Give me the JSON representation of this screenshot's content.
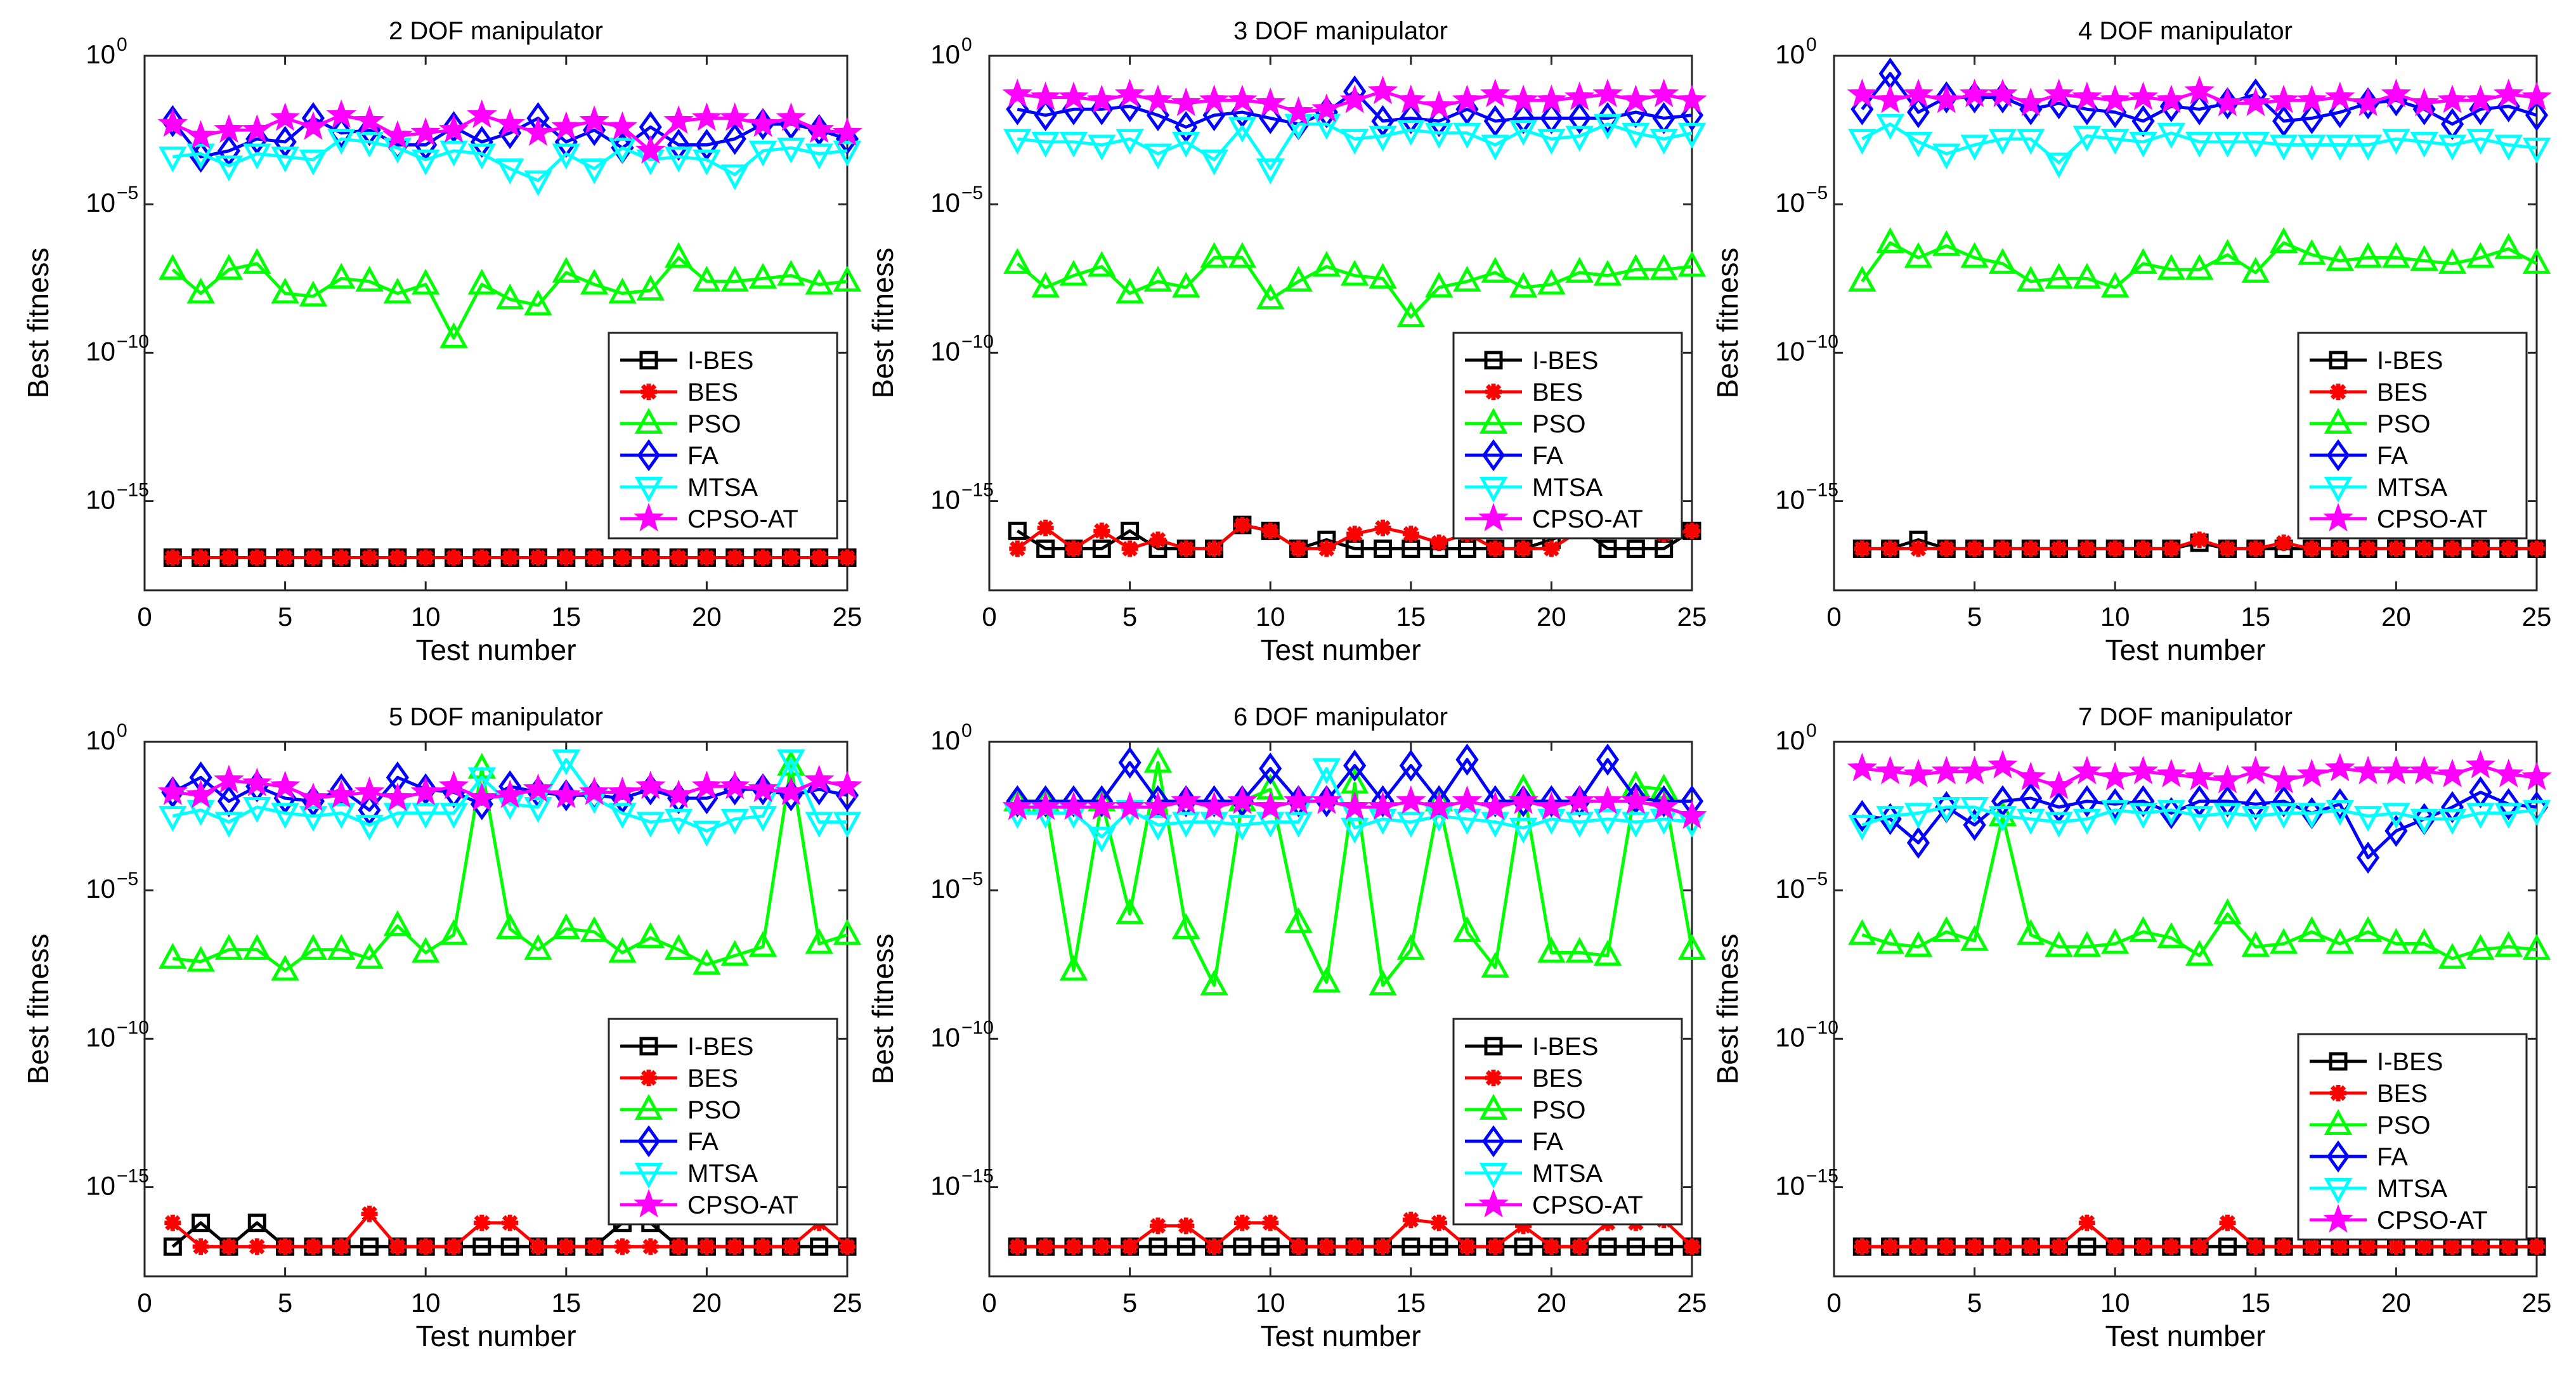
{
  "chart_data": {
    "type": "line",
    "x": [
      1,
      2,
      3,
      4,
      5,
      6,
      7,
      8,
      9,
      10,
      11,
      12,
      13,
      14,
      15,
      16,
      17,
      18,
      19,
      20,
      21,
      22,
      23,
      24,
      25
    ],
    "xlabel": "Test number",
    "ylabel": "Best fitness",
    "xlim": [
      0,
      25
    ],
    "ylim": [
      1e-18,
      1
    ],
    "xticks": [
      0,
      5,
      10,
      15,
      20,
      25
    ],
    "xtick_labels": [
      "0",
      "5",
      "10",
      "15",
      "20",
      "25"
    ],
    "ytick_exponents": [
      0,
      -5,
      -10,
      -15
    ],
    "ytick_base": "10",
    "ytick_labels": [
      "10^0",
      "10^-5",
      "10^-10",
      "10^-15"
    ],
    "y_scale": "log",
    "legend_entries": [
      "I-BES",
      "BES",
      "PSO",
      "FA",
      "MTSA",
      "CPSO-AT"
    ],
    "series_styles": [
      {
        "name": "I-BES",
        "color": "#000000",
        "marker": "square"
      },
      {
        "name": "BES",
        "color": "#ff0000",
        "marker": "asterisk"
      },
      {
        "name": "PSO",
        "color": "#00ff00",
        "marker": "triangle-up"
      },
      {
        "name": "FA",
        "color": "#0000ff",
        "marker": "diamond"
      },
      {
        "name": "MTSA",
        "color": "#00ffff",
        "marker": "triangle-down"
      },
      {
        "name": "CPSO-AT",
        "color": "#ff00ff",
        "marker": "star"
      }
    ],
    "panels": [
      {
        "title": "2 DOF manipulator",
        "legend_position": "bottom-right",
        "series": {
          "I-BES": [
            -16.9,
            -16.9,
            -16.9,
            -16.9,
            -16.9,
            -16.9,
            -16.9,
            -16.9,
            -16.9,
            -16.9,
            -16.9,
            -16.9,
            -16.9,
            -16.9,
            -16.9,
            -16.9,
            -16.9,
            -16.9,
            -16.9,
            -16.9,
            -16.9,
            -16.9,
            -16.9,
            -16.9,
            -16.9
          ],
          "BES": [
            -16.9,
            -16.9,
            -16.9,
            -16.9,
            -16.9,
            -16.9,
            -16.9,
            -16.9,
            -16.9,
            -16.9,
            -16.9,
            -16.9,
            -16.9,
            -16.9,
            -16.9,
            -16.9,
            -16.9,
            -16.9,
            -16.9,
            -16.9,
            -16.9,
            -16.9,
            -16.9,
            -16.9,
            -16.9
          ],
          "PSO": [
            -7.2,
            -8.0,
            -7.2,
            -7.0,
            -8.0,
            -8.1,
            -7.5,
            -7.6,
            -8.0,
            -7.7,
            -9.5,
            -7.7,
            -8.2,
            -8.4,
            -7.3,
            -7.7,
            -8.0,
            -7.9,
            -6.8,
            -7.6,
            -7.6,
            -7.5,
            -7.4,
            -7.7,
            -7.6
          ],
          "FA": [
            -2.2,
            -3.4,
            -3.2,
            -2.8,
            -2.9,
            -2.1,
            -2.6,
            -2.5,
            -3.0,
            -3.0,
            -2.4,
            -2.9,
            -2.6,
            -2.1,
            -2.9,
            -2.5,
            -3.1,
            -2.4,
            -3.0,
            -3.0,
            -2.8,
            -2.3,
            -2.3,
            -2.5,
            -2.8
          ],
          "MTSA": [
            -3.4,
            -3.3,
            -3.7,
            -3.3,
            -3.4,
            -3.5,
            -2.8,
            -2.9,
            -3.1,
            -3.5,
            -3.2,
            -3.3,
            -3.8,
            -4.2,
            -3.3,
            -3.8,
            -3.1,
            -3.5,
            -3.4,
            -3.5,
            -4.0,
            -3.2,
            -3.1,
            -3.3,
            -3.2
          ],
          "CPSO-AT": [
            -2.3,
            -2.7,
            -2.5,
            -2.5,
            -2.1,
            -2.4,
            -2.0,
            -2.2,
            -2.7,
            -2.6,
            -2.5,
            -2.0,
            -2.3,
            -2.6,
            -2.4,
            -2.2,
            -2.4,
            -3.2,
            -2.2,
            -2.1,
            -2.1,
            -2.3,
            -2.1,
            -2.5,
            -2.6
          ]
        }
      },
      {
        "title": "3 DOF manipulator",
        "legend_position": "bottom-right",
        "series": {
          "I-BES": [
            -16.0,
            -16.6,
            -16.6,
            -16.6,
            -16.0,
            -16.6,
            -16.6,
            -16.6,
            -15.8,
            -16.0,
            -16.6,
            -16.3,
            -16.6,
            -16.6,
            -16.6,
            -16.6,
            -16.6,
            -16.6,
            -16.6,
            -16.3,
            -15.9,
            -16.6,
            -16.6,
            -16.6,
            -16.0
          ],
          "BES": [
            -16.6,
            -15.9,
            -16.6,
            -16.0,
            -16.6,
            -16.3,
            -16.6,
            -16.6,
            -15.8,
            -16.0,
            -16.6,
            -16.6,
            -16.1,
            -15.9,
            -16.1,
            -16.4,
            -16.1,
            -16.6,
            -16.6,
            -16.6,
            -16.0,
            -16.0,
            -15.7,
            -16.1,
            -16.0
          ],
          "PSO": [
            -7.0,
            -7.8,
            -7.4,
            -7.1,
            -8.0,
            -7.6,
            -7.8,
            -6.8,
            -6.8,
            -8.2,
            -7.6,
            -7.1,
            -7.4,
            -7.5,
            -8.8,
            -7.8,
            -7.6,
            -7.3,
            -7.8,
            -7.7,
            -7.3,
            -7.4,
            -7.2,
            -7.2,
            -7.1
          ],
          "FA": [
            -1.8,
            -2.0,
            -1.8,
            -1.8,
            -1.7,
            -2.0,
            -2.4,
            -2.0,
            -1.9,
            -2.1,
            -2.3,
            -1.9,
            -1.2,
            -2.2,
            -2.1,
            -2.2,
            -1.8,
            -2.2,
            -2.1,
            -2.1,
            -2.1,
            -2.1,
            -1.9,
            -2.1,
            -2.0
          ],
          "MTSA": [
            -2.8,
            -2.9,
            -2.9,
            -3.0,
            -2.8,
            -3.3,
            -2.9,
            -3.5,
            -2.4,
            -3.8,
            -2.3,
            -2.3,
            -2.8,
            -2.7,
            -2.5,
            -2.6,
            -2.6,
            -3.0,
            -2.5,
            -2.8,
            -2.7,
            -2.3,
            -2.6,
            -2.8,
            -2.6
          ],
          "CPSO-AT": [
            -1.3,
            -1.4,
            -1.4,
            -1.5,
            -1.3,
            -1.5,
            -1.6,
            -1.5,
            -1.5,
            -1.6,
            -1.9,
            -1.8,
            -1.5,
            -1.2,
            -1.5,
            -1.7,
            -1.5,
            -1.3,
            -1.5,
            -1.5,
            -1.4,
            -1.3,
            -1.5,
            -1.3,
            -1.5
          ]
        }
      },
      {
        "title": "4 DOF manipulator",
        "legend_position": "bottom-right",
        "series": {
          "I-BES": [
            -16.6,
            -16.6,
            -16.3,
            -16.6,
            -16.6,
            -16.6,
            -16.6,
            -16.6,
            -16.6,
            -16.6,
            -16.6,
            -16.6,
            -16.4,
            -16.6,
            -16.6,
            -16.6,
            -16.6,
            -16.6,
            -16.6,
            -16.6,
            -16.6,
            -16.6,
            -16.6,
            -16.6,
            -16.6
          ],
          "BES": [
            -16.6,
            -16.6,
            -16.6,
            -16.6,
            -16.6,
            -16.6,
            -16.6,
            -16.6,
            -16.6,
            -16.6,
            -16.6,
            -16.6,
            -16.3,
            -16.6,
            -16.6,
            -16.4,
            -16.6,
            -16.6,
            -16.6,
            -16.6,
            -16.6,
            -16.6,
            -16.6,
            -16.6,
            -16.6
          ],
          "PSO": [
            -7.6,
            -6.3,
            -6.8,
            -6.4,
            -6.8,
            -7.0,
            -7.6,
            -7.5,
            -7.5,
            -7.8,
            -7.0,
            -7.2,
            -7.2,
            -6.7,
            -7.3,
            -6.3,
            -6.7,
            -6.9,
            -6.8,
            -6.8,
            -6.9,
            -7.0,
            -6.8,
            -6.5,
            -7.0
          ],
          "FA": [
            -1.8,
            -0.6,
            -1.9,
            -1.4,
            -1.4,
            -1.4,
            -1.8,
            -1.6,
            -1.8,
            -1.9,
            -2.2,
            -1.7,
            -1.8,
            -1.6,
            -1.3,
            -2.2,
            -2.1,
            -1.9,
            -1.6,
            -1.5,
            -1.8,
            -2.3,
            -1.8,
            -1.7,
            -2.0
          ],
          "MTSA": [
            -2.8,
            -2.3,
            -2.9,
            -3.3,
            -3.0,
            -2.8,
            -2.8,
            -3.6,
            -2.7,
            -2.8,
            -2.9,
            -2.6,
            -2.9,
            -2.9,
            -2.9,
            -3.0,
            -3.0,
            -3.0,
            -3.0,
            -2.8,
            -2.9,
            -3.0,
            -2.8,
            -3.0,
            -3.1
          ],
          "CPSO-AT": [
            -1.3,
            -1.5,
            -1.3,
            -1.5,
            -1.3,
            -1.3,
            -1.6,
            -1.3,
            -1.4,
            -1.5,
            -1.4,
            -1.5,
            -1.2,
            -1.6,
            -1.6,
            -1.5,
            -1.5,
            -1.4,
            -1.6,
            -1.3,
            -1.6,
            -1.5,
            -1.5,
            -1.3,
            -1.4
          ]
        }
      },
      {
        "title": "5 DOF manipulator",
        "legend_position": "bottom-right",
        "series": {
          "I-BES": [
            -17.0,
            -16.2,
            -17.0,
            -16.2,
            -17.0,
            -17.0,
            -17.0,
            -17.0,
            -17.0,
            -17.0,
            -17.0,
            -17.0,
            -17.0,
            -17.0,
            -17.0,
            -17.0,
            -16.2,
            -16.2,
            -17.0,
            -17.0,
            -17.0,
            -17.0,
            -17.0,
            -17.0,
            -17.0
          ],
          "BES": [
            -16.2,
            -17.0,
            -17.0,
            -17.0,
            -17.0,
            -17.0,
            -17.0,
            -15.9,
            -17.0,
            -17.0,
            -17.0,
            -16.2,
            -16.2,
            -17.0,
            -17.0,
            -17.0,
            -17.0,
            -17.0,
            -17.0,
            -17.0,
            -17.0,
            -17.0,
            -17.0,
            -16.2,
            -17.0
          ],
          "PSO": [
            -7.3,
            -7.4,
            -7.0,
            -7.0,
            -7.7,
            -7.0,
            -7.0,
            -7.3,
            -6.2,
            -7.1,
            -6.5,
            -0.9,
            -6.3,
            -7.0,
            -6.3,
            -6.4,
            -7.1,
            -6.6,
            -7.0,
            -7.5,
            -7.2,
            -6.9,
            -0.8,
            -6.8,
            -6.5
          ],
          "FA": [
            -1.7,
            -1.2,
            -2.0,
            -1.5,
            -1.9,
            -2.0,
            -1.6,
            -2.3,
            -1.2,
            -1.6,
            -1.7,
            -2.1,
            -1.5,
            -1.7,
            -1.8,
            -1.8,
            -1.9,
            -1.6,
            -1.9,
            -1.9,
            -1.6,
            -1.6,
            -1.8,
            -1.6,
            -1.8
          ],
          "MTSA": [
            -2.5,
            -2.3,
            -2.7,
            -2.2,
            -2.4,
            -2.5,
            -2.4,
            -2.8,
            -2.4,
            -2.4,
            -2.4,
            -1.2,
            -2.1,
            -2.2,
            -0.6,
            -1.9,
            -2.4,
            -2.7,
            -2.6,
            -3.0,
            -2.6,
            -2.5,
            -0.6,
            -2.7,
            -2.7
          ],
          "CPSO-AT": [
            -1.7,
            -1.8,
            -1.3,
            -1.4,
            -1.5,
            -1.9,
            -1.8,
            -1.7,
            -1.9,
            -1.7,
            -1.5,
            -1.9,
            -1.8,
            -1.6,
            -1.8,
            -1.7,
            -1.7,
            -1.5,
            -1.8,
            -1.5,
            -1.5,
            -1.6,
            -1.7,
            -1.3,
            -1.5
          ]
        }
      },
      {
        "title": "6 DOF manipulator",
        "legend_position": "bottom-right",
        "series": {
          "I-BES": [
            -17.0,
            -17.0,
            -17.0,
            -17.0,
            -17.0,
            -17.0,
            -17.0,
            -17.0,
            -17.0,
            -17.0,
            -17.0,
            -17.0,
            -17.0,
            -17.0,
            -17.0,
            -17.0,
            -17.0,
            -17.0,
            -17.0,
            -17.0,
            -17.0,
            -17.0,
            -17.0,
            -17.0,
            -17.0
          ],
          "BES": [
            -17.0,
            -17.0,
            -17.0,
            -17.0,
            -17.0,
            -16.3,
            -16.3,
            -17.0,
            -16.2,
            -16.2,
            -17.0,
            -17.0,
            -17.0,
            -17.0,
            -16.1,
            -16.2,
            -17.0,
            -17.0,
            -16.3,
            -17.0,
            -17.0,
            -16.2,
            -16.2,
            -16.1,
            -17.0
          ],
          "PSO": [
            -2.0,
            -2.0,
            -7.7,
            -2.0,
            -5.8,
            -0.7,
            -6.3,
            -8.2,
            -2.0,
            -1.6,
            -6.1,
            -8.1,
            -1.4,
            -8.2,
            -7.0,
            -2.0,
            -6.4,
            -7.6,
            -1.6,
            -7.1,
            -7.1,
            -7.2,
            -1.5,
            -1.6,
            -7.0
          ],
          "FA": [
            -2.0,
            -2.0,
            -2.0,
            -2.0,
            -0.7,
            -2.0,
            -2.0,
            -2.0,
            -2.0,
            -0.9,
            -2.0,
            -2.0,
            -0.8,
            -2.0,
            -0.8,
            -2.0,
            -0.6,
            -2.0,
            -2.0,
            -2.0,
            -2.0,
            -0.6,
            -1.9,
            -2.0,
            -2.0
          ],
          "MTSA": [
            -2.4,
            -2.4,
            -2.4,
            -3.2,
            -2.3,
            -2.8,
            -2.7,
            -2.7,
            -2.8,
            -2.7,
            -2.7,
            -0.9,
            -2.9,
            -2.6,
            -2.7,
            -2.5,
            -2.6,
            -2.7,
            -2.9,
            -2.6,
            -2.7,
            -2.6,
            -2.7,
            -2.6,
            -2.7
          ],
          "CPSO-AT": [
            -2.2,
            -2.2,
            -2.2,
            -2.2,
            -2.2,
            -2.2,
            -2.0,
            -2.2,
            -2.0,
            -2.2,
            -2.0,
            -2.0,
            -2.2,
            -2.2,
            -2.0,
            -2.2,
            -2.0,
            -2.2,
            -2.0,
            -2.2,
            -2.0,
            -2.0,
            -2.0,
            -2.2,
            -2.5
          ]
        }
      },
      {
        "title": "7 DOF manipulator",
        "legend_position": "bottom-right",
        "series": {
          "I-BES": [
            -17.0,
            -17.0,
            -17.0,
            -17.0,
            -17.0,
            -17.0,
            -17.0,
            -17.0,
            -17.0,
            -17.0,
            -17.0,
            -17.0,
            -17.0,
            -17.0,
            -17.0,
            -17.0,
            -17.0,
            -17.0,
            -17.0,
            -17.0,
            -17.0,
            -17.0,
            -17.0,
            -17.0,
            -17.0
          ],
          "BES": [
            -17.0,
            -17.0,
            -17.0,
            -17.0,
            -17.0,
            -17.0,
            -17.0,
            -17.0,
            -16.2,
            -17.0,
            -17.0,
            -17.0,
            -17.0,
            -16.2,
            -17.0,
            -17.0,
            -17.0,
            -17.0,
            -17.0,
            -17.0,
            -17.0,
            -17.0,
            -17.0,
            -17.0,
            -17.0
          ],
          "PSO": [
            -6.5,
            -6.8,
            -6.9,
            -6.4,
            -6.7,
            -2.5,
            -6.5,
            -6.9,
            -6.9,
            -6.8,
            -6.4,
            -6.6,
            -7.2,
            -5.8,
            -6.9,
            -6.8,
            -6.4,
            -6.8,
            -6.4,
            -6.8,
            -6.8,
            -7.3,
            -7.0,
            -6.9,
            -7.0
          ],
          "FA": [
            -2.5,
            -2.6,
            -3.4,
            -2.2,
            -2.8,
            -2.0,
            -1.9,
            -2.2,
            -2.0,
            -2.1,
            -2.0,
            -2.4,
            -2.0,
            -2.0,
            -2.1,
            -2.0,
            -2.4,
            -2.1,
            -3.9,
            -3.0,
            -2.6,
            -2.2,
            -1.7,
            -2.1,
            -2.2
          ],
          "MTSA": [
            -2.8,
            -2.5,
            -2.4,
            -2.2,
            -2.2,
            -2.5,
            -2.6,
            -2.7,
            -2.6,
            -2.3,
            -2.4,
            -2.3,
            -2.5,
            -2.4,
            -2.5,
            -2.4,
            -2.4,
            -2.3,
            -2.5,
            -2.4,
            -2.6,
            -2.6,
            -2.4,
            -2.4,
            -2.3
          ],
          "CPSO-AT": [
            -0.9,
            -1.0,
            -1.1,
            -1.0,
            -1.0,
            -0.8,
            -1.2,
            -1.5,
            -1.0,
            -1.2,
            -1.0,
            -1.1,
            -1.2,
            -1.3,
            -1.0,
            -1.3,
            -1.1,
            -0.9,
            -1.0,
            -1.0,
            -1.0,
            -1.1,
            -0.8,
            -1.1,
            -1.2
          ]
        }
      }
    ]
  }
}
